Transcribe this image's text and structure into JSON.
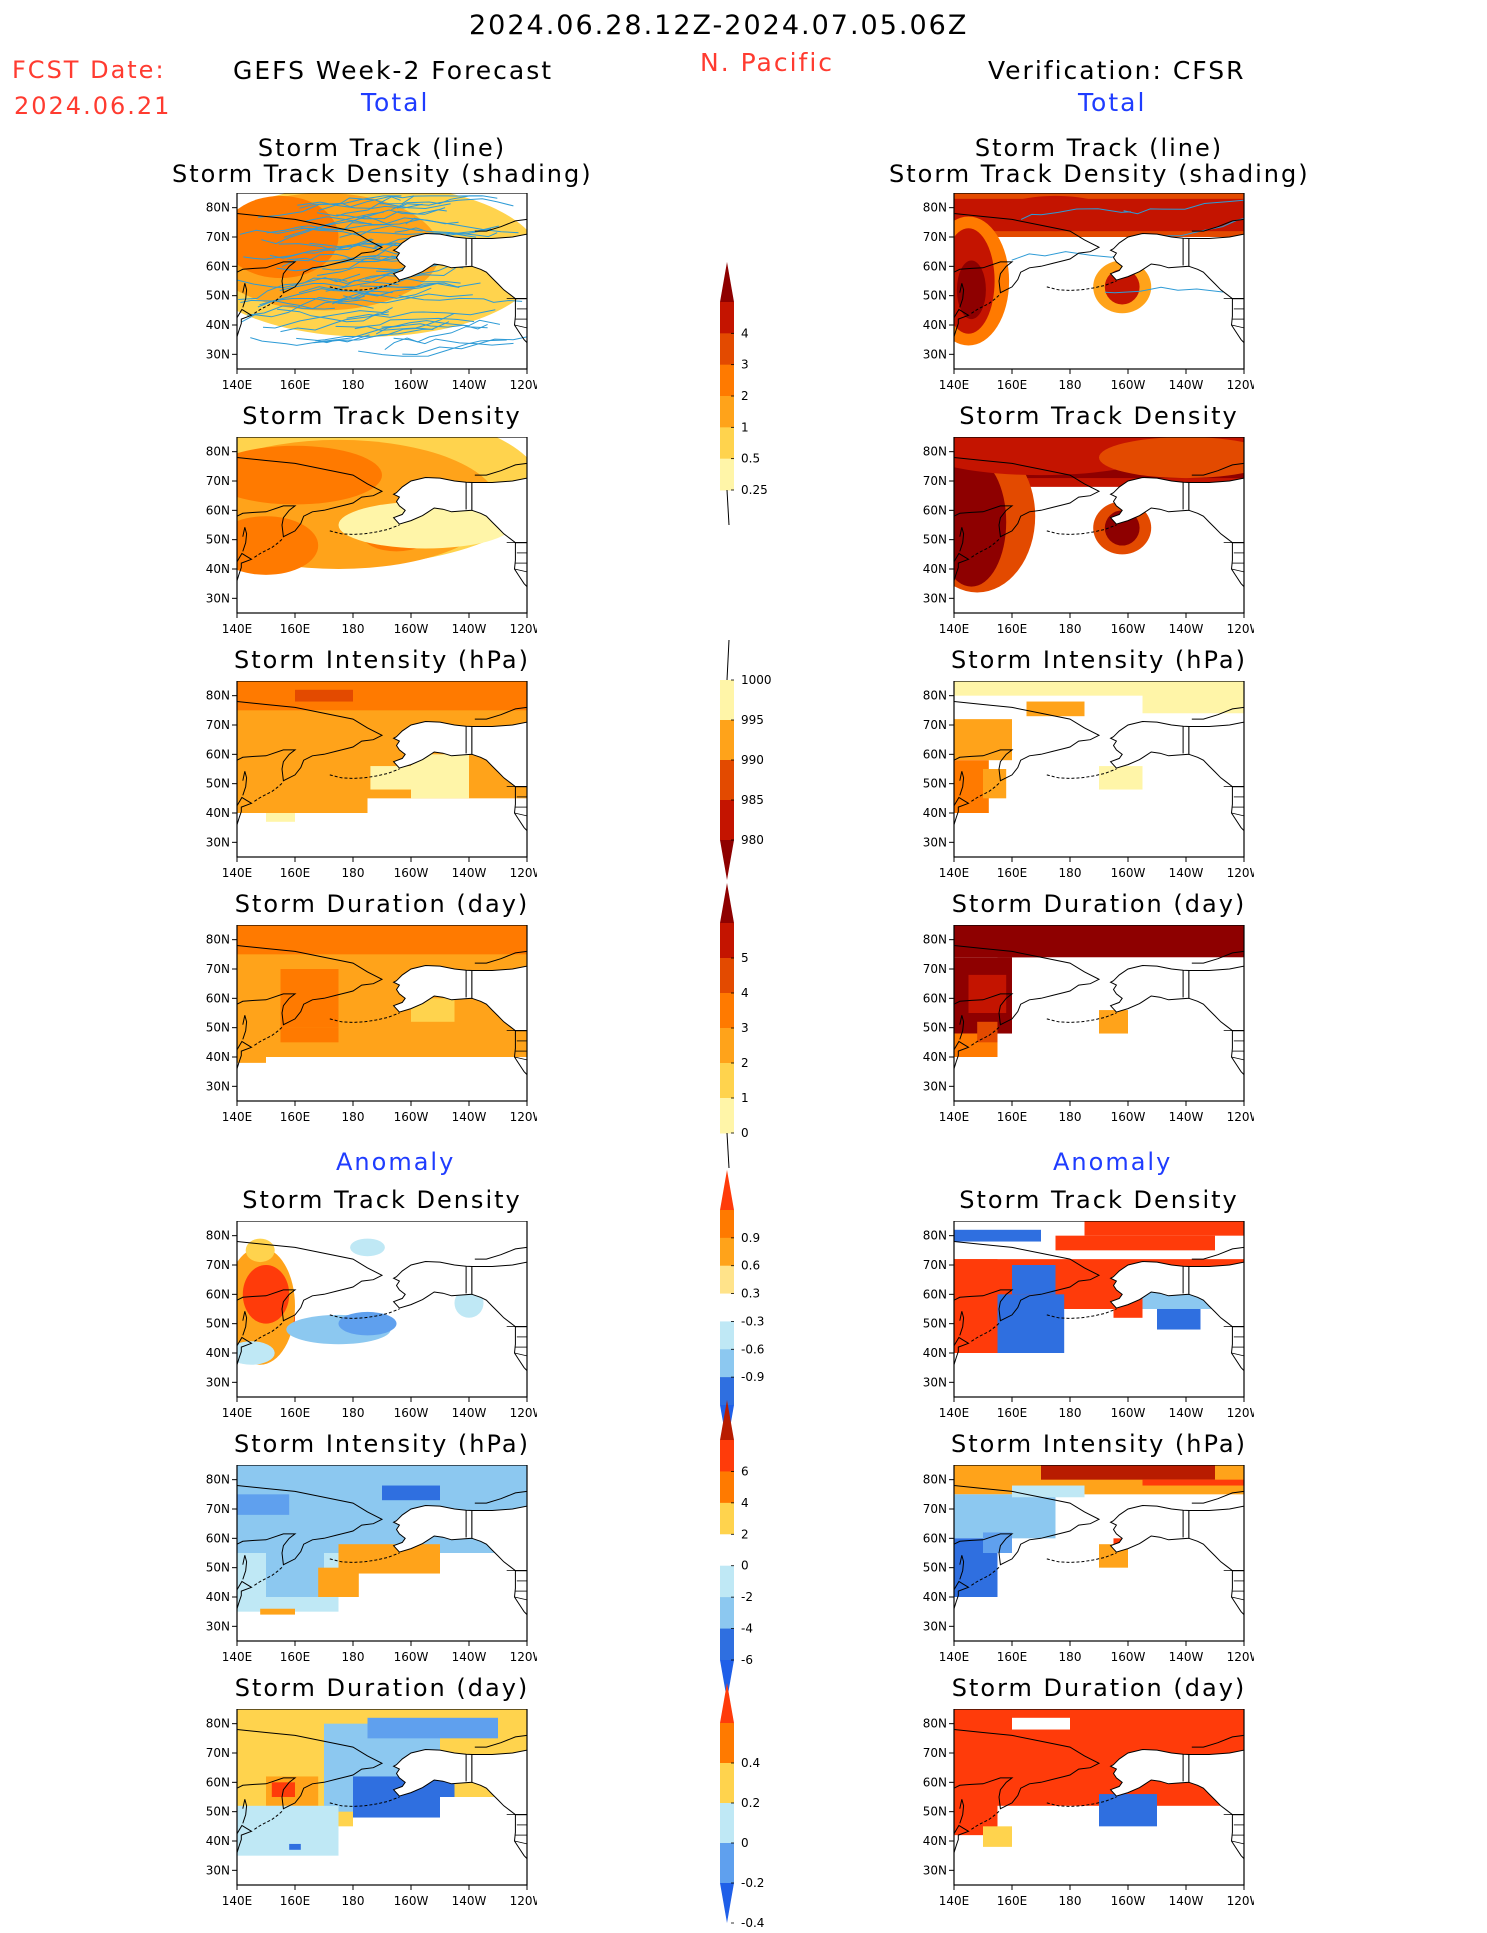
{
  "header": {
    "period": "2024.06.28.12Z-2024.07.05.06Z",
    "fcst_label": "FCST Date:",
    "fcst_date": "2024.06.21",
    "forecast_title": "GEFS Week-2 Forecast",
    "region": "N. Pacific",
    "verification_title": "Verification: CFSR",
    "total_left": "Total",
    "total_right": "Total",
    "anomaly_left": "Anomaly",
    "anomaly_right": "Anomaly"
  },
  "axes": {
    "x_ticks": [
      "140E",
      "160E",
      "180",
      "160W",
      "140W",
      "120W"
    ],
    "y_ticks": [
      "80N",
      "70N",
      "60N",
      "50N",
      "40N",
      "30N"
    ]
  },
  "colors": {
    "land_border": "#000000",
    "track_line": "#2e9bd6",
    "warm": [
      "#fff5a8",
      "#ffd34d",
      "#ffa31a",
      "#ff7a00",
      "#e34a00",
      "#c41400",
      "#8e0000"
    ],
    "cool": [
      "#bfe8f5",
      "#8cc8f0",
      "#5fa0ee",
      "#2f6fe0"
    ]
  },
  "panels": {
    "fc_track": {
      "title1": "Storm Track (line)",
      "title2": "Storm Track Density (shading)"
    },
    "vf_track": {
      "title1": "Storm Track (line)",
      "title2": "Storm Track Density (shading)"
    },
    "fc_density": {
      "title1": "Storm Track Density"
    },
    "vf_density": {
      "title1": "Storm Track Density"
    },
    "fc_intensity": {
      "title1": "Storm Intensity (hPa)"
    },
    "vf_intensity": {
      "title1": "Storm Intensity (hPa)"
    },
    "fc_duration": {
      "title1": "Storm Duration (day)"
    },
    "vf_duration": {
      "title1": "Storm Duration (day)"
    },
    "fa_density": {
      "title1": "Storm Track Density"
    },
    "va_density": {
      "title1": "Storm Track Density"
    },
    "fa_intensity": {
      "title1": "Storm Intensity (hPa)"
    },
    "va_intensity": {
      "title1": "Storm Intensity (hPa)"
    },
    "fa_duration": {
      "title1": "Storm Duration (day)"
    },
    "va_duration": {
      "title1": "Storm Duration (day)"
    }
  },
  "colorbars": {
    "density": {
      "labels": [
        "4",
        "3",
        "2",
        "1",
        "0.5",
        "0.25"
      ],
      "colors": [
        "#8e0000",
        "#c41400",
        "#e34a00",
        "#ff7a00",
        "#ffa31a",
        "#ffd34d",
        "#fff5a8",
        "#ffffff"
      ]
    },
    "intensity": {
      "labels": [
        "1000",
        "995",
        "990",
        "985",
        "980"
      ],
      "colors": [
        "#ffffff",
        "#fff5a8",
        "#ffa31a",
        "#e34a00",
        "#c41400",
        "#8e0000"
      ]
    },
    "duration": {
      "labels": [
        "5",
        "4",
        "3",
        "2",
        "1",
        "0"
      ],
      "colors": [
        "#8e0000",
        "#c41400",
        "#e34a00",
        "#ff7a00",
        "#ffa31a",
        "#ffd34d",
        "#fff5a8",
        "#ffffff"
      ]
    },
    "anom_density": {
      "labels": [
        "0.9",
        "0.6",
        "0.3",
        "-0.3",
        "-0.6",
        "-0.9"
      ],
      "colors": [
        "#ff3b0a",
        "#ff7a00",
        "#ffa31a",
        "#ffe38a",
        "#ffffff",
        "#bfe8f5",
        "#8cc8f0",
        "#2f6fe0",
        "#1f5fe8"
      ]
    },
    "anom_intensity": {
      "labels": [
        "6",
        "4",
        "2",
        "0",
        "-2",
        "-4",
        "-6"
      ],
      "colors": [
        "#b81c00",
        "#ff3b0a",
        "#ff7a00",
        "#ffd34d",
        "#ffffff",
        "#bfe8f5",
        "#8cc8f0",
        "#2f6fe0",
        "#1f5fe8"
      ]
    },
    "anom_duration": {
      "labels": [
        "0.4",
        "0.2",
        "0",
        "-0.2",
        "-0.4"
      ],
      "colors": [
        "#ff3b0a",
        "#ff7a00",
        "#ffd34d",
        "#bfe8f5",
        "#5fa0ee",
        "#1f5fe8"
      ]
    }
  },
  "chart_data": {
    "type": "heatmap",
    "domain": {
      "lon_range": [
        "140E",
        "120W"
      ],
      "lat_range": [
        "25N",
        "85N"
      ]
    },
    "variables": [
      "Storm Track Density",
      "Storm Intensity (hPa)",
      "Storm Duration (day)"
    ],
    "columns": [
      "GEFS Week-2 Forecast",
      "Verification: CFSR"
    ],
    "sections": [
      "Total",
      "Anomaly"
    ]
  }
}
